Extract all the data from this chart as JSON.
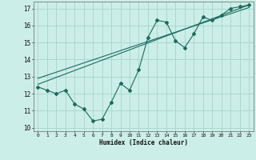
{
  "xlabel": "Humidex (Indice chaleur)",
  "xlim": [
    -0.5,
    23.5
  ],
  "ylim": [
    9.8,
    17.4
  ],
  "xticks": [
    0,
    1,
    2,
    3,
    4,
    5,
    6,
    7,
    8,
    9,
    10,
    11,
    12,
    13,
    14,
    15,
    16,
    17,
    18,
    19,
    20,
    21,
    22,
    23
  ],
  "yticks": [
    10,
    11,
    12,
    13,
    14,
    15,
    16,
    17
  ],
  "bg_color": "#cceee8",
  "grid_color": "#aad8d0",
  "line_color": "#1a6b5e",
  "data_line": {
    "x": [
      0,
      1,
      2,
      3,
      4,
      5,
      6,
      7,
      8,
      9,
      10,
      11,
      12,
      13,
      14,
      15,
      16,
      17,
      18,
      19,
      20,
      21,
      22,
      23
    ],
    "y": [
      12.4,
      12.2,
      12.0,
      12.2,
      11.4,
      11.1,
      10.4,
      10.5,
      11.5,
      12.6,
      12.2,
      13.4,
      15.3,
      16.3,
      16.2,
      15.1,
      14.7,
      15.5,
      16.5,
      16.3,
      16.6,
      17.0,
      17.1,
      17.2
    ]
  },
  "line1": {
    "x": [
      0,
      23
    ],
    "y": [
      12.55,
      17.2
    ]
  },
  "line2": {
    "x": [
      0,
      23
    ],
    "y": [
      12.9,
      17.05
    ]
  }
}
